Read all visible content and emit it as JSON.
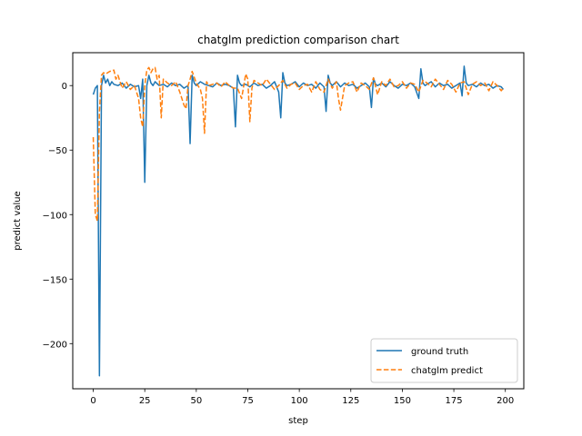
{
  "chart_data": {
    "type": "line",
    "title": "chatglm prediction comparison chart",
    "xlabel": "step",
    "ylabel": "predict value",
    "xlim": [
      -9.95,
      208.95
    ],
    "ylim": [
      -235,
      25.5
    ],
    "xticks": [
      0,
      25,
      50,
      75,
      100,
      125,
      150,
      175,
      200
    ],
    "yticks": [
      -200,
      -150,
      -100,
      -50,
      0
    ],
    "ytick_labels": [
      "−200",
      "−150",
      "−100",
      "−50",
      "0"
    ],
    "grid": false,
    "legend_position": "lower-right",
    "series": [
      {
        "name": "ground truth",
        "color": "#1f77b4",
        "dash": "solid",
        "x": [
          0,
          1,
          2,
          3,
          4,
          5,
          6,
          7,
          8,
          9,
          10,
          12,
          14,
          16,
          18,
          20,
          22,
          23,
          24,
          25,
          26,
          27,
          28,
          29,
          30,
          32,
          34,
          36,
          38,
          40,
          42,
          44,
          46,
          47,
          48,
          49,
          50,
          52,
          54,
          56,
          58,
          60,
          62,
          64,
          66,
          68,
          69,
          70,
          71,
          72,
          74,
          76,
          78,
          80,
          82,
          84,
          86,
          88,
          90,
          91,
          92,
          93,
          94,
          96,
          98,
          100,
          102,
          104,
          106,
          108,
          110,
          112,
          113,
          114,
          115,
          116,
          118,
          120,
          122,
          124,
          126,
          128,
          130,
          132,
          134,
          135,
          136,
          137,
          138,
          140,
          142,
          144,
          146,
          148,
          150,
          152,
          154,
          156,
          158,
          159,
          160,
          161,
          162,
          164,
          166,
          168,
          170,
          172,
          174,
          176,
          178,
          179,
          180,
          181,
          182,
          184,
          186,
          188,
          190,
          192,
          194,
          196,
          198,
          199
        ],
        "y": [
          -7,
          -2,
          0,
          -225,
          0,
          8,
          2,
          5,
          0,
          3,
          1,
          0,
          2,
          -2,
          1,
          -1,
          0,
          -10,
          5,
          -75,
          0,
          8,
          2,
          0,
          3,
          0,
          1,
          -1,
          2,
          0,
          1,
          -2,
          0,
          -45,
          8,
          2,
          0,
          3,
          1,
          0,
          -1,
          2,
          0,
          1,
          0,
          -2,
          -32,
          8,
          2,
          0,
          1,
          -1,
          2,
          0,
          1,
          -2,
          0,
          3,
          -5,
          -25,
          10,
          2,
          0,
          1,
          3,
          -1,
          2,
          0,
          1,
          -2,
          2,
          -1,
          -20,
          8,
          2,
          0,
          3,
          -1,
          2,
          0,
          1,
          -2,
          0,
          2,
          -1,
          -17,
          6,
          1,
          0,
          2,
          -1,
          3,
          0,
          -2,
          1,
          0,
          2,
          -1,
          -10,
          13,
          2,
          0,
          1,
          3,
          -1,
          2,
          0,
          1,
          -2,
          0,
          2,
          -8,
          15,
          2,
          0,
          1,
          -1,
          2,
          0,
          1,
          -2,
          0,
          -1,
          -3
        ]
      },
      {
        "name": "chatglm predict",
        "color": "#ff7f0e",
        "dash": "dashed",
        "x": [
          0,
          1,
          2,
          3,
          4,
          5,
          6,
          8,
          10,
          11,
          12,
          14,
          16,
          18,
          20,
          22,
          23,
          24,
          25,
          26,
          27,
          28,
          29,
          30,
          31,
          32,
          33,
          34,
          36,
          38,
          40,
          42,
          44,
          45,
          46,
          47,
          48,
          50,
          52,
          53,
          54,
          55,
          56,
          58,
          60,
          62,
          64,
          66,
          68,
          70,
          72,
          74,
          75,
          76,
          77,
          78,
          80,
          82,
          84,
          86,
          88,
          90,
          92,
          94,
          96,
          98,
          100,
          102,
          104,
          106,
          108,
          110,
          112,
          114,
          116,
          118,
          119,
          120,
          122,
          124,
          126,
          128,
          130,
          132,
          134,
          136,
          138,
          140,
          142,
          144,
          146,
          148,
          150,
          152,
          154,
          156,
          158,
          160,
          162,
          164,
          166,
          168,
          170,
          172,
          174,
          176,
          178,
          180,
          182,
          184,
          186,
          188,
          190,
          192,
          194,
          196,
          198,
          199
        ],
        "y": [
          -40,
          -100,
          -105,
          -20,
          8,
          10,
          9,
          11,
          12,
          5,
          8,
          -2,
          3,
          -3,
          0,
          -10,
          -25,
          -32,
          0,
          12,
          14,
          10,
          13,
          14,
          5,
          8,
          -25,
          5,
          2,
          0,
          3,
          -5,
          -15,
          -18,
          0,
          5,
          11,
          2,
          -3,
          -10,
          -37,
          3,
          0,
          1,
          2,
          -1,
          3,
          0,
          -2,
          -2,
          -10,
          9,
          5,
          -28,
          -2,
          4,
          2,
          0,
          5,
          1,
          -3,
          0,
          4,
          -2,
          1,
          2,
          -3,
          0,
          1,
          -5,
          3,
          -3,
          -5,
          5,
          -2,
          3,
          -10,
          -19,
          0,
          2,
          3,
          -5,
          2,
          0,
          -3,
          6,
          -7,
          3,
          0,
          5,
          -1,
          0,
          3,
          -2,
          2,
          1,
          -5,
          4,
          2,
          -1,
          5,
          1,
          -3,
          4,
          1,
          -5,
          2,
          3,
          -7,
          1,
          3,
          0,
          2,
          -4,
          3,
          0,
          -4,
          -2
        ]
      }
    ]
  }
}
